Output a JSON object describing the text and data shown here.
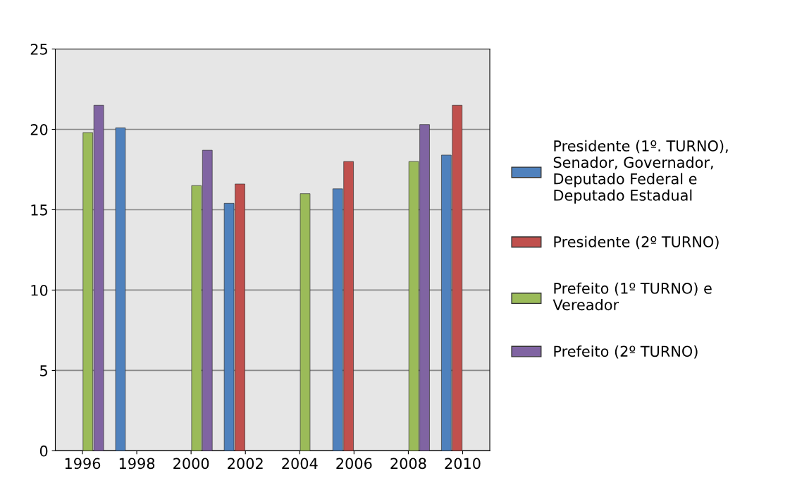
{
  "chart_data": {
    "type": "bar",
    "categories": [
      "1996",
      "1998",
      "2000",
      "2002",
      "2004",
      "2006",
      "2008",
      "2010"
    ],
    "series": [
      {
        "name": "Presidente (1º. TURNO), Senador, Governador, Deputado Federal e Deputado Estadual",
        "color": "#4f81bd",
        "values": [
          null,
          20.1,
          null,
          15.4,
          null,
          16.3,
          null,
          18.4
        ]
      },
      {
        "name": "Presidente (2º TURNO)",
        "color": "#c0504d",
        "values": [
          null,
          null,
          null,
          16.6,
          null,
          18.0,
          null,
          21.5
        ]
      },
      {
        "name": "Prefeito (1º TURNO) e Vereador",
        "color": "#9bbb59",
        "values": [
          19.8,
          null,
          16.5,
          null,
          16.0,
          null,
          18.0,
          null
        ]
      },
      {
        "name": "Prefeito (2º TURNO)",
        "color": "#8064a2",
        "values": [
          21.5,
          null,
          18.7,
          null,
          null,
          null,
          20.3,
          null
        ]
      }
    ],
    "ylim": [
      0,
      25
    ],
    "yticks": [
      0,
      5,
      10,
      15,
      20,
      25
    ],
    "grid": "y",
    "legend": "right"
  }
}
